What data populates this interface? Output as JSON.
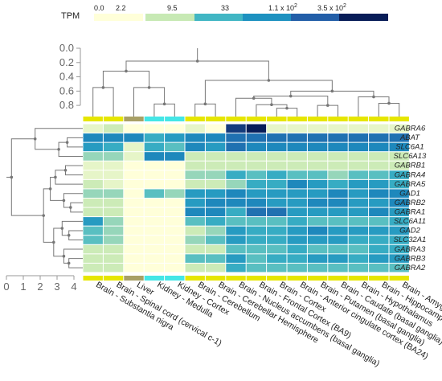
{
  "chart_data": {
    "type": "heatmap",
    "color_scale": {
      "title": "TPM",
      "labels": [
        "0.0",
        "2.2",
        "9.5",
        "33",
        "1.1 x 10",
        "3.5 x 10"
      ],
      "superscripts": [
        "",
        "",
        "",
        "",
        "2",
        "2"
      ],
      "colors": [
        "#ffffd9",
        "#c7e9b4",
        "#41b6c4",
        "#1d91c0",
        "#225ea8",
        "#081d58"
      ]
    },
    "tissues": [
      "Brain - Substantia nigra",
      "Brain - Spinal cord (cervical c-1)",
      "Liver",
      "Kidney - Medulla",
      "Kidney - Cortex",
      "Brain - Cerebellum",
      "Brain - Cerebellar Hemisphere",
      "Brain - Nucleus accumbens (basal ganglia)",
      "Brain - Frontal Cortex (BA9)",
      "Brain - Cortex",
      "Brain - Anterior cingulate cortex (BA24)",
      "Brain - Putamen (basal ganglia)",
      "Brain - Caudate (basal ganglia)",
      "Brain - Hypothalamus",
      "Brain - Hippocampus",
      "Brain - Amygdala"
    ],
    "tissue_group_colors": [
      "#e6e600",
      "#e6e600",
      "#a8a066",
      "#44e6e6",
      "#44e6e6",
      "#e6e600",
      "#e6e600",
      "#e6e600",
      "#e6e600",
      "#e6e600",
      "#e6e600",
      "#e6e600",
      "#e6e600",
      "#e6e600",
      "#e6e600",
      "#e6e600"
    ],
    "genes": [
      "GABRA6",
      "ABAT",
      "SLC6A1",
      "SLC6A13",
      "GABRB1",
      "GABRA4",
      "GABRA5",
      "GAD1",
      "GABRB2",
      "GABRA1",
      "SLC6A11",
      "GAD2",
      "SLC32A1",
      "GABRA3",
      "GABRB3",
      "GABRA2"
    ],
    "values": [
      [
        0.5,
        1,
        0,
        0,
        0,
        0.5,
        0,
        5,
        5.5,
        0.5,
        0.5,
        0.5,
        0.5,
        0.5,
        0.5,
        0.5
      ],
      [
        3.5,
        3.5,
        3.5,
        2.5,
        3,
        3.5,
        3.5,
        4,
        4,
        4,
        4,
        4,
        4,
        4,
        4,
        4
      ],
      [
        3,
        2.5,
        0.5,
        2.5,
        2,
        3.5,
        3,
        4,
        3.5,
        3.5,
        3.5,
        3.5,
        3.5,
        3.5,
        3.5,
        3.5
      ],
      [
        1.5,
        1.5,
        0.5,
        3.5,
        3.5,
        1,
        1,
        1,
        1,
        1,
        1,
        1,
        1,
        1,
        1,
        1
      ],
      [
        0.5,
        0.5,
        0,
        0,
        0,
        1,
        1,
        1,
        1,
        1,
        1,
        1,
        1,
        1,
        1,
        1
      ],
      [
        0.5,
        0.5,
        0,
        0,
        0,
        1.5,
        1.5,
        2.5,
        2,
        2.5,
        2,
        2,
        1.5,
        2,
        2,
        2.5
      ],
      [
        1,
        0.5,
        0,
        0,
        0,
        1,
        1,
        1.5,
        2.5,
        2.5,
        3.5,
        3,
        2.5,
        3,
        3,
        2.5
      ],
      [
        1.5,
        1.5,
        0,
        2,
        1.5,
        3,
        3,
        3.5,
        3,
        3,
        3,
        3,
        3.5,
        3,
        3.5,
        3.5
      ],
      [
        1,
        1,
        0,
        0,
        0,
        3,
        3.5,
        3.5,
        3.5,
        3,
        3,
        3.5,
        3.5,
        3,
        3,
        3.5
      ],
      [
        1,
        1,
        0,
        0,
        0,
        3.5,
        3.5,
        2.5,
        4,
        4,
        3,
        3,
        3,
        3,
        3.5,
        3
      ],
      [
        3,
        1.5,
        0,
        0,
        0,
        2,
        2.5,
        2,
        2,
        2,
        2.5,
        2,
        2,
        2,
        2,
        2.5
      ],
      [
        2,
        1.5,
        0,
        0,
        0,
        1,
        1.5,
        3,
        2.5,
        2.5,
        3,
        3.5,
        3,
        3,
        3,
        3
      ],
      [
        2,
        1.5,
        0,
        0,
        0,
        1.5,
        2,
        3,
        2.5,
        2.5,
        3,
        3,
        3,
        2.5,
        2.5,
        2.5
      ],
      [
        1,
        1,
        0,
        0,
        0,
        1,
        1,
        2,
        2,
        2,
        2.5,
        2,
        2,
        2,
        2.5,
        2.5
      ],
      [
        1,
        1,
        0,
        0,
        0,
        2,
        2,
        3,
        2,
        2.5,
        2.5,
        3,
        3,
        2.5,
        3,
        3
      ],
      [
        1,
        1,
        0,
        0,
        0,
        1,
        1,
        2.5,
        2,
        2,
        2,
        2,
        2,
        2,
        2,
        2
      ]
    ],
    "top_dendrogram_axis": {
      "ticks": [
        "0.0",
        "0.2",
        "0.4",
        "0.6",
        "0.8"
      ],
      "range": [
        0,
        0.9
      ]
    },
    "left_dendrogram_axis": {
      "ticks": [
        "0",
        "1",
        "2",
        "3",
        "4"
      ],
      "range": [
        0,
        4
      ]
    }
  }
}
